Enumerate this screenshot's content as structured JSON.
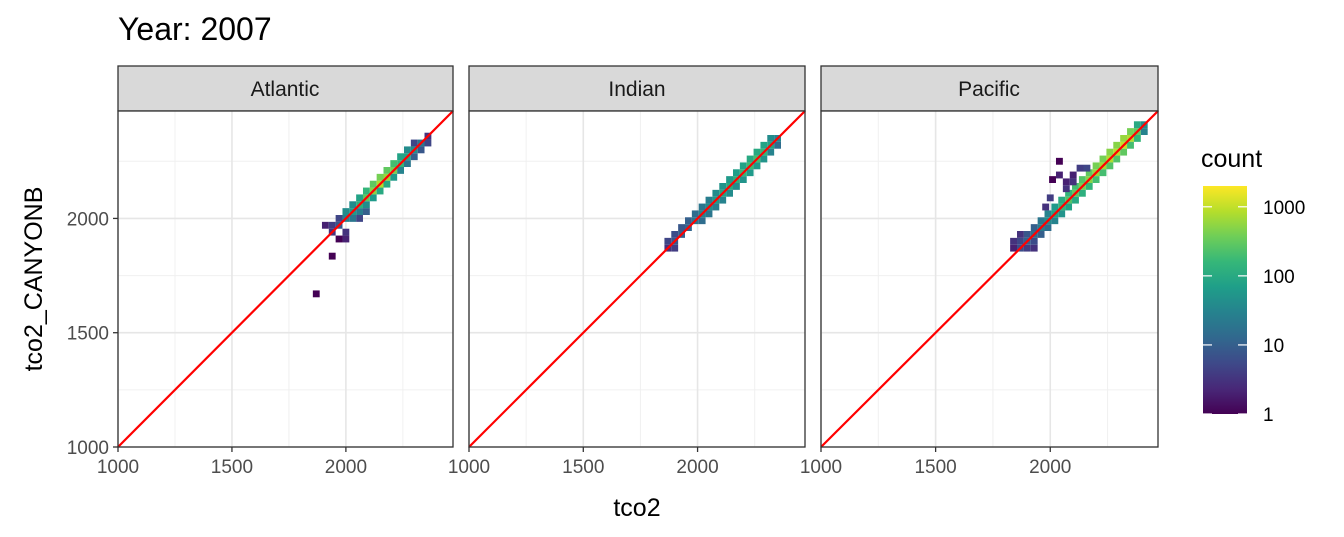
{
  "chart_data": {
    "type": "heatmap",
    "title": "Year: 2007",
    "xlabel": "tco2",
    "ylabel": "tco2_CANYONB",
    "xlim": [
      1000,
      2470
    ],
    "ylim": [
      1000,
      2470
    ],
    "x_ticks": [
      1000,
      1500,
      2000
    ],
    "y_ticks": [
      1000,
      1500,
      2000
    ],
    "bin_width": 30,
    "reference_line": {
      "color": "#ff0000",
      "slope": 1,
      "intercept": 0
    },
    "legend": {
      "title": "count",
      "scale": "log10",
      "range": [
        1,
        2000
      ],
      "breaks": [
        1,
        10,
        100,
        1000
      ],
      "break_labels": [
        "1",
        "10",
        "100",
        "1000"
      ],
      "colors": [
        "#440154",
        "#482878",
        "#3e4989",
        "#31688e",
        "#26828e",
        "#1f9e89",
        "#35b779",
        "#6ece58",
        "#b5de2b",
        "#fde725"
      ]
    },
    "grid": true,
    "panels": [
      {
        "label": "Atlantic",
        "bins": [
          [
            1870,
            1670,
            1
          ],
          [
            1940,
            1835,
            1
          ],
          [
            1910,
            1970,
            2
          ],
          [
            1940,
            1940,
            3
          ],
          [
            1940,
            1970,
            4
          ],
          [
            1970,
            1910,
            1
          ],
          [
            1970,
            1970,
            8
          ],
          [
            1970,
            2000,
            5
          ],
          [
            2000,
            1910,
            2
          ],
          [
            2000,
            1940,
            3
          ],
          [
            2000,
            2000,
            30
          ],
          [
            2000,
            2030,
            40
          ],
          [
            2030,
            2030,
            60
          ],
          [
            2030,
            2060,
            40
          ],
          [
            2030,
            2000,
            20
          ],
          [
            2060,
            2060,
            120
          ],
          [
            2060,
            2030,
            25
          ],
          [
            2060,
            2090,
            80
          ],
          [
            2090,
            2090,
            300
          ],
          [
            2090,
            2120,
            150
          ],
          [
            2090,
            2060,
            40
          ],
          [
            2120,
            2120,
            500
          ],
          [
            2120,
            2150,
            300
          ],
          [
            2120,
            2090,
            60
          ],
          [
            2150,
            2150,
            800
          ],
          [
            2150,
            2180,
            400
          ],
          [
            2150,
            2120,
            100
          ],
          [
            2180,
            2180,
            600
          ],
          [
            2180,
            2210,
            300
          ],
          [
            2180,
            2150,
            100
          ],
          [
            2210,
            2210,
            400
          ],
          [
            2210,
            2240,
            200
          ],
          [
            2210,
            2180,
            60
          ],
          [
            2240,
            2240,
            150
          ],
          [
            2240,
            2270,
            80
          ],
          [
            2240,
            2210,
            30
          ],
          [
            2270,
            2270,
            80
          ],
          [
            2270,
            2300,
            40
          ],
          [
            2270,
            2240,
            20
          ],
          [
            2300,
            2300,
            40
          ],
          [
            2300,
            2270,
            10
          ],
          [
            2300,
            2330,
            5
          ],
          [
            2330,
            2330,
            20
          ],
          [
            2330,
            2300,
            8
          ],
          [
            2360,
            2330,
            5
          ],
          [
            2360,
            2360,
            3
          ],
          [
            2090,
            2030,
            10
          ],
          [
            2060,
            2000,
            5
          ]
        ]
      },
      {
        "label": "Indian",
        "bins": [
          [
            1870,
            1870,
            3
          ],
          [
            1870,
            1900,
            5
          ],
          [
            1900,
            1870,
            4
          ],
          [
            1900,
            1900,
            8
          ],
          [
            1900,
            1930,
            6
          ],
          [
            1930,
            1930,
            10
          ],
          [
            1930,
            1960,
            8
          ],
          [
            1960,
            1960,
            12
          ],
          [
            1960,
            1990,
            10
          ],
          [
            1990,
            1990,
            20
          ],
          [
            1990,
            2020,
            15
          ],
          [
            2020,
            2020,
            30
          ],
          [
            2020,
            2050,
            20
          ],
          [
            2020,
            1990,
            15
          ],
          [
            2050,
            2050,
            40
          ],
          [
            2050,
            2080,
            25
          ],
          [
            2050,
            2020,
            20
          ],
          [
            2080,
            2080,
            60
          ],
          [
            2080,
            2110,
            40
          ],
          [
            2080,
            2050,
            25
          ],
          [
            2110,
            2110,
            80
          ],
          [
            2110,
            2140,
            50
          ],
          [
            2110,
            2080,
            30
          ],
          [
            2140,
            2140,
            100
          ],
          [
            2140,
            2170,
            60
          ],
          [
            2140,
            2110,
            40
          ],
          [
            2170,
            2170,
            120
          ],
          [
            2170,
            2200,
            70
          ],
          [
            2170,
            2140,
            40
          ],
          [
            2200,
            2200,
            150
          ],
          [
            2200,
            2230,
            80
          ],
          [
            2200,
            2170,
            50
          ],
          [
            2230,
            2230,
            180
          ],
          [
            2230,
            2260,
            100
          ],
          [
            2230,
            2200,
            60
          ],
          [
            2260,
            2260,
            200
          ],
          [
            2260,
            2290,
            100
          ],
          [
            2260,
            2230,
            60
          ],
          [
            2290,
            2290,
            150
          ],
          [
            2290,
            2320,
            80
          ],
          [
            2290,
            2260,
            50
          ],
          [
            2320,
            2320,
            80
          ],
          [
            2320,
            2350,
            40
          ],
          [
            2320,
            2290,
            30
          ],
          [
            2350,
            2350,
            30
          ],
          [
            2350,
            2320,
            15
          ]
        ]
      },
      {
        "label": "Pacific",
        "bins": [
          [
            1840,
            1870,
            2
          ],
          [
            1840,
            1900,
            3
          ],
          [
            1870,
            1870,
            6
          ],
          [
            1870,
            1900,
            5
          ],
          [
            1870,
            1930,
            3
          ],
          [
            1900,
            1870,
            4
          ],
          [
            1900,
            1900,
            10
          ],
          [
            1900,
            1930,
            8
          ],
          [
            1930,
            1870,
            3
          ],
          [
            1930,
            1930,
            15
          ],
          [
            1930,
            1960,
            10
          ],
          [
            1930,
            1900,
            6
          ],
          [
            1960,
            1960,
            25
          ],
          [
            1960,
            1990,
            20
          ],
          [
            1960,
            1930,
            10
          ],
          [
            1990,
            1990,
            40
          ],
          [
            1990,
            2020,
            30
          ],
          [
            1990,
            1960,
            15
          ],
          [
            2020,
            2020,
            80
          ],
          [
            2020,
            2050,
            60
          ],
          [
            2020,
            1990,
            30
          ],
          [
            2050,
            2050,
            150
          ],
          [
            2050,
            2080,
            100
          ],
          [
            2050,
            2020,
            50
          ],
          [
            2080,
            2080,
            250
          ],
          [
            2080,
            2110,
            150
          ],
          [
            2080,
            2050,
            80
          ],
          [
            2110,
            2110,
            300
          ],
          [
            2110,
            2140,
            200
          ],
          [
            2110,
            2080,
            100
          ],
          [
            2140,
            2140,
            400
          ],
          [
            2140,
            2170,
            250
          ],
          [
            2140,
            2110,
            120
          ],
          [
            2170,
            2170,
            500
          ],
          [
            2170,
            2200,
            300
          ],
          [
            2170,
            2140,
            150
          ],
          [
            2200,
            2200,
            600
          ],
          [
            2200,
            2230,
            400
          ],
          [
            2200,
            2170,
            200
          ],
          [
            2230,
            2230,
            700
          ],
          [
            2230,
            2260,
            400
          ],
          [
            2230,
            2200,
            200
          ],
          [
            2260,
            2260,
            800
          ],
          [
            2260,
            2290,
            500
          ],
          [
            2260,
            2230,
            250
          ],
          [
            2290,
            2290,
            900
          ],
          [
            2290,
            2320,
            500
          ],
          [
            2290,
            2260,
            250
          ],
          [
            2320,
            2320,
            1000
          ],
          [
            2320,
            2350,
            600
          ],
          [
            2320,
            2290,
            300
          ],
          [
            2350,
            2350,
            800
          ],
          [
            2350,
            2380,
            400
          ],
          [
            2350,
            2320,
            200
          ],
          [
            2380,
            2380,
            300
          ],
          [
            2380,
            2410,
            100
          ],
          [
            2380,
            2350,
            150
          ],
          [
            2410,
            2410,
            40
          ],
          [
            2410,
            2380,
            30
          ],
          [
            2040,
            2250,
            1
          ],
          [
            2040,
            2190,
            2
          ],
          [
            2070,
            2160,
            2
          ],
          [
            2070,
            2130,
            3
          ],
          [
            2100,
            2190,
            2
          ],
          [
            2010,
            2170,
            1
          ],
          [
            2100,
            2160,
            3
          ],
          [
            2130,
            2220,
            4
          ],
          [
            2160,
            2220,
            5
          ],
          [
            2000,
            2090,
            4
          ],
          [
            1980,
            2050,
            3
          ]
        ]
      }
    ]
  }
}
